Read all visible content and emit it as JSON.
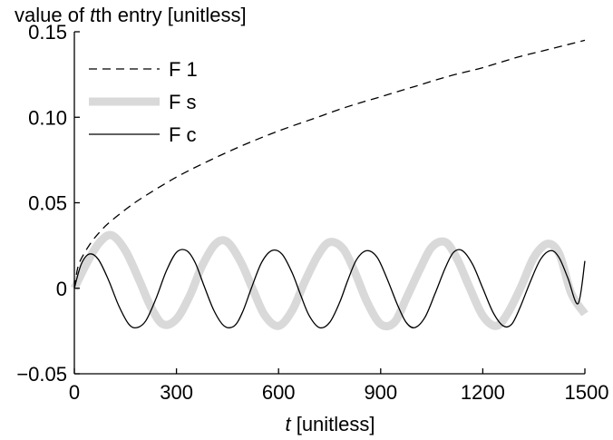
{
  "chart_data": {
    "type": "line",
    "title": "",
    "ylabel_prefix": "value of ",
    "ylabel_italic": "t",
    "ylabel_suffix": "th entry [unitless]",
    "xlabel_italic": "t",
    "xlabel_suffix": " [unitless]",
    "xlim": [
      0,
      1500
    ],
    "ylim": [
      -0.05,
      0.15
    ],
    "xticks": [
      0,
      300,
      600,
      900,
      1200,
      1500
    ],
    "xtick_labels": [
      "0",
      "300",
      "600",
      "900",
      "1200",
      "1500"
    ],
    "yticks": [
      -0.05,
      0,
      0.05,
      0.1,
      0.15
    ],
    "ytick_labels": [
      "−0.05",
      "0",
      "0.05",
      "0.10",
      "0.15"
    ],
    "grid": false,
    "legend_position": "top-left",
    "series": [
      {
        "name": "F 1",
        "style": "dashed",
        "color": "#000000",
        "x": [
          0,
          10,
          25,
          50,
          75,
          100,
          150,
          200,
          300,
          400,
          500,
          600,
          700,
          800,
          900,
          1000,
          1100,
          1200,
          1300,
          1400,
          1500
        ],
        "y": [
          0,
          0.012,
          0.019,
          0.027,
          0.033,
          0.038,
          0.046,
          0.053,
          0.065,
          0.075,
          0.084,
          0.092,
          0.099,
          0.106,
          0.112,
          0.118,
          0.124,
          0.129,
          0.135,
          0.14,
          0.145
        ]
      },
      {
        "name": "F s",
        "style": "thick-solid",
        "color": "#d9d9d9",
        "x": [
          0,
          40,
          75,
          110,
          150,
          190,
          225,
          260,
          300,
          340,
          375,
          415,
          450,
          490,
          525,
          560,
          600,
          640,
          675,
          715,
          750,
          790,
          825,
          860,
          900,
          940,
          975,
          1015,
          1050,
          1090,
          1125,
          1160,
          1200,
          1240,
          1275,
          1315,
          1350,
          1390,
          1425,
          1460,
          1500
        ],
        "y": [
          0,
          0.016,
          0.027,
          0.031,
          0.022,
          0.005,
          -0.011,
          -0.021,
          -0.018,
          -0.004,
          0.013,
          0.026,
          0.027,
          0.015,
          -0.001,
          -0.016,
          -0.022,
          -0.013,
          0.003,
          0.019,
          0.027,
          0.023,
          0.009,
          -0.008,
          -0.021,
          -0.02,
          -0.006,
          0.011,
          0.024,
          0.027,
          0.017,
          0.001,
          -0.016,
          -0.022,
          -0.014,
          0.002,
          0.018,
          0.026,
          0.02,
          -0.003,
          -0.015
        ]
      },
      {
        "name": "F c",
        "style": "solid",
        "color": "#000000",
        "x": [
          0,
          20,
          44,
          70,
          100,
          130,
          160,
          184,
          210,
          240,
          270,
          300,
          330,
          355,
          380,
          410,
          440,
          470,
          494,
          520,
          550,
          580,
          610,
          640,
          665,
          690,
          720,
          750,
          780,
          804,
          830,
          860,
          890,
          920,
          950,
          975,
          1000,
          1030,
          1060,
          1090,
          1114,
          1140,
          1170,
          1200,
          1230,
          1260,
          1285,
          1310,
          1340,
          1370,
          1400,
          1424,
          1450,
          1480,
          1500
        ],
        "y": [
          0,
          0.014,
          0.02,
          0.017,
          0.005,
          -0.01,
          -0.021,
          -0.023,
          -0.019,
          -0.006,
          0.01,
          0.021,
          0.022,
          0.015,
          0.002,
          -0.013,
          -0.022,
          -0.022,
          -0.014,
          0.0,
          0.015,
          0.022,
          0.02,
          0.009,
          -0.004,
          -0.016,
          -0.023,
          -0.02,
          -0.008,
          0.005,
          0.017,
          0.022,
          0.018,
          0.005,
          -0.01,
          -0.02,
          -0.023,
          -0.017,
          -0.003,
          0.012,
          0.021,
          0.022,
          0.014,
          0.0,
          -0.014,
          -0.022,
          -0.021,
          -0.011,
          0.004,
          0.017,
          0.022,
          0.018,
          0.006,
          -0.009,
          0.016
        ]
      }
    ]
  }
}
